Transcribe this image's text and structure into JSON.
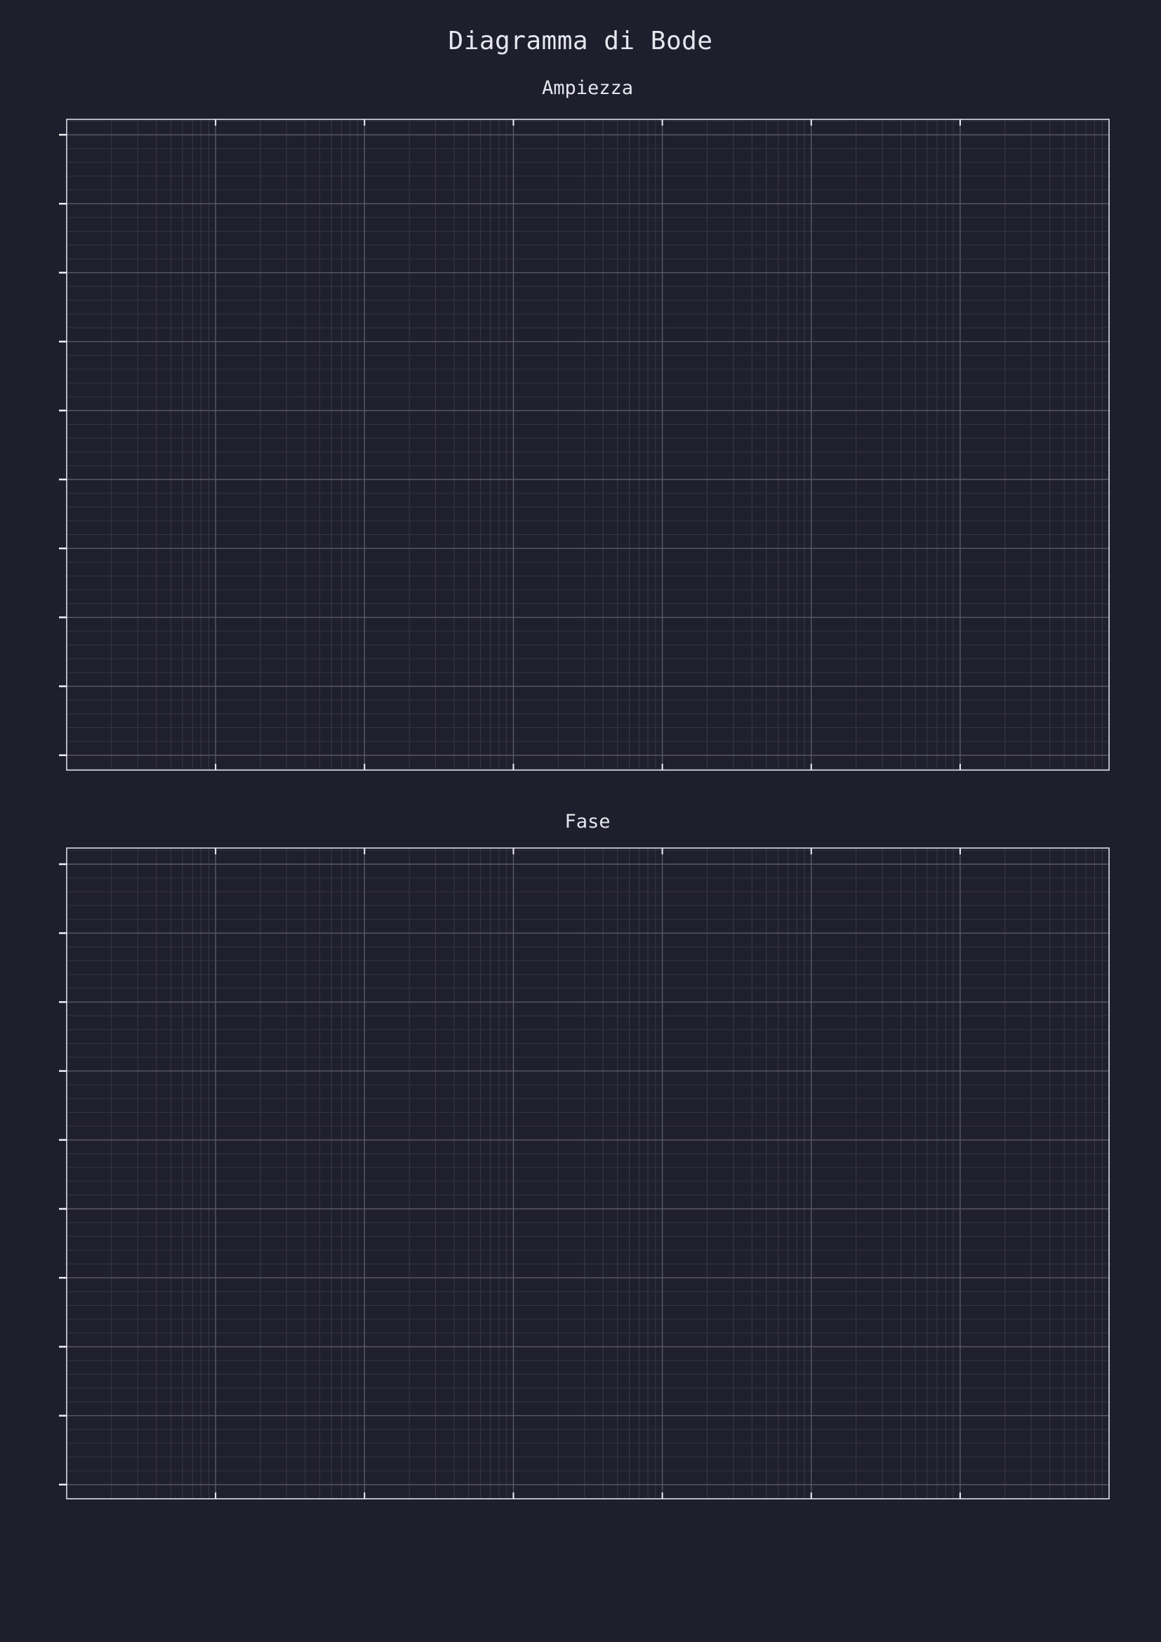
{
  "figure": {
    "title": "Diagramma di Bode",
    "background": "#1f1e2c",
    "foreground": "#e6e6ee"
  },
  "chart_data": [
    {
      "type": "line",
      "title": "Ampiezza",
      "xscale": "log",
      "x_major_decades": 7,
      "x_minor_per_decade": 9,
      "y_major_ticks": 10,
      "y_minor_per_major": 5,
      "grid": true,
      "series": [],
      "tick_labels_shown": false
    },
    {
      "type": "line",
      "title": "Fase",
      "xscale": "log",
      "x_major_decades": 7,
      "x_minor_per_decade": 9,
      "y_major_ticks": 10,
      "y_minor_per_major": 5,
      "grid": true,
      "series": [],
      "tick_labels_shown": false
    }
  ]
}
